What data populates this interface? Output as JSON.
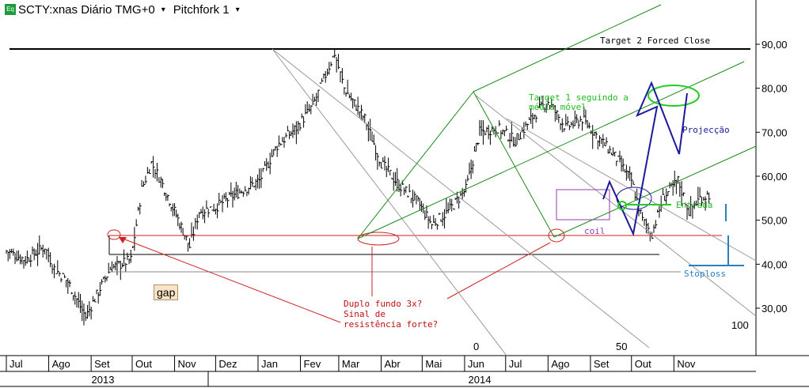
{
  "header": {
    "symbol_label": "SCTY:xnas Diário TMG+0",
    "study_label": "Pitchfork 1",
    "icon_text": "Eq",
    "dropdown_glyph": "▾"
  },
  "chart_data": {
    "type": "candlestick",
    "ylim": [
      20,
      100
    ],
    "yticks": [
      "30,00",
      "40,00",
      "50,00",
      "60,00",
      "70,00",
      "80,00",
      "90,00"
    ],
    "ytick_values": [
      30,
      40,
      50,
      60,
      70,
      80,
      90
    ],
    "xlim": [
      "2013-07-01",
      "2014-12-31"
    ],
    "month_labels": [
      "Jul",
      "Ago",
      "Set",
      "Out",
      "Nov",
      "Dez",
      "Jan",
      "Fev",
      "Mar",
      "Abr",
      "Mai",
      "Jun",
      "Jul",
      "Ago",
      "Set",
      "Out",
      "Nov"
    ],
    "month_dates": [
      "2013-07-01",
      "2013-08-01",
      "2013-09-01",
      "2013-10-01",
      "2013-11-01",
      "2013-12-01",
      "2014-01-01",
      "2014-02-01",
      "2014-03-01",
      "2014-04-01",
      "2014-05-01",
      "2014-06-01",
      "2014-07-01",
      "2014-08-01",
      "2014-09-01",
      "2014-10-01",
      "2014-11-01"
    ],
    "year_labels": [
      "2013",
      "2014"
    ],
    "series": [
      {
        "points": [
          [
            "2013-07-01",
            43
          ],
          [
            "2013-07-15",
            41
          ],
          [
            "2013-07-29",
            44
          ],
          [
            "2013-08-05",
            39
          ],
          [
            "2013-08-15",
            36
          ],
          [
            "2013-08-28",
            28
          ],
          [
            "2013-09-05",
            33
          ],
          [
            "2013-09-15",
            39
          ],
          [
            "2013-09-30",
            41
          ],
          [
            "2013-10-08",
            57
          ],
          [
            "2013-10-15",
            63
          ],
          [
            "2013-10-22",
            59
          ],
          [
            "2013-11-01",
            52
          ],
          [
            "2013-11-12",
            44
          ],
          [
            "2013-11-19",
            52
          ],
          [
            "2013-12-01",
            53
          ],
          [
            "2013-12-16",
            56
          ],
          [
            "2014-01-02",
            59
          ],
          [
            "2014-01-15",
            67
          ],
          [
            "2014-01-29",
            71
          ],
          [
            "2014-02-10",
            76
          ],
          [
            "2014-02-18",
            82
          ],
          [
            "2014-02-26",
            88
          ],
          [
            "2014-03-05",
            80
          ],
          [
            "2014-03-20",
            73
          ],
          [
            "2014-04-01",
            63
          ],
          [
            "2014-04-14",
            58
          ],
          [
            "2014-04-28",
            54
          ],
          [
            "2014-05-08",
            49
          ],
          [
            "2014-05-20",
            52
          ],
          [
            "2014-06-02",
            57
          ],
          [
            "2014-06-12",
            70
          ],
          [
            "2014-06-25",
            71
          ],
          [
            "2014-07-08",
            68
          ],
          [
            "2014-07-22",
            74
          ],
          [
            "2014-08-01",
            77
          ],
          [
            "2014-08-14",
            71
          ],
          [
            "2014-08-26",
            73
          ],
          [
            "2014-09-09",
            68
          ],
          [
            "2014-09-20",
            64
          ],
          [
            "2014-10-01",
            59
          ],
          [
            "2014-10-09",
            50
          ],
          [
            "2014-10-16",
            47
          ],
          [
            "2014-10-24",
            55
          ],
          [
            "2014-11-04",
            59
          ],
          [
            "2014-11-12",
            52
          ],
          [
            "2014-11-20",
            55
          ],
          [
            "2014-11-28",
            56
          ]
        ]
      }
    ],
    "annotations": {
      "target2": "Target 2 Forced Close",
      "target1_l1": "Target 1 seguindo a",
      "target1_l2": "média móvel",
      "projection": "Projecção",
      "entry": "Entrada",
      "coil": "coil",
      "stoploss": "Stoploss",
      "gap": "gap",
      "double_bottom_l1": "Duplo fundo 3x?",
      "double_bottom_l2": "Sinal de",
      "double_bottom_l3": "resistência forte?",
      "fib_0": "0",
      "fib_50": "50",
      "fib_100": "100"
    },
    "colors": {
      "price": "#000000",
      "pitchfork": "#1a8a1a",
      "pitchfork_gray": "#9a9a9a",
      "support": "#d02020",
      "projection": "#1a1a9a",
      "entry": "#22cc22",
      "target1_ellipse": "#22cc22",
      "coil": "#9a3ab0",
      "stoploss": "#2a7fc0"
    },
    "grid": false
  }
}
